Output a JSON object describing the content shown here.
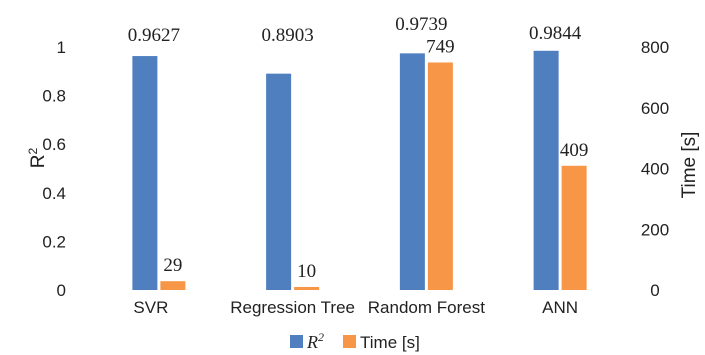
{
  "chart_data": {
    "type": "bar",
    "categories": [
      "SVR",
      "Regression Tree",
      "Random Forest",
      "ANN"
    ],
    "series": [
      {
        "name": "R2",
        "axis": "left",
        "values": [
          0.9627,
          0.8903,
          0.9739,
          0.9844
        ],
        "labels": [
          "0.9627",
          "0.8903",
          "0.9739",
          "0.9844"
        ],
        "color": "#4f7fbf"
      },
      {
        "name": "Time [s]",
        "axis": "right",
        "values": [
          29,
          10,
          749,
          409
        ],
        "labels": [
          "29",
          "10",
          "749",
          "409"
        ],
        "color": "#f79646"
      }
    ],
    "ylabel": "R²",
    "y2label": "Time [s]",
    "ylim": [
      0,
      1.0
    ],
    "y2lim": [
      0,
      800
    ],
    "yticks": [
      "0",
      "0.2",
      "0.4",
      "0.6",
      "0.8",
      "1"
    ],
    "y2ticks": [
      "0",
      "200",
      "400",
      "600",
      "800"
    ],
    "legend": {
      "position": "bottom",
      "r2_base": "R",
      "r2_sup": "2",
      "time_label": "Time [s]"
    },
    "grid": false
  }
}
